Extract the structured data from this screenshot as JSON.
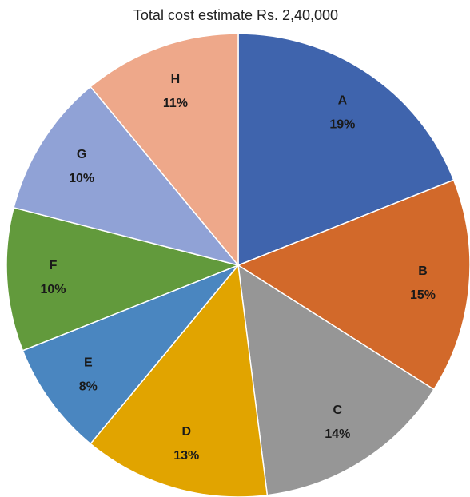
{
  "chart_data": {
    "type": "pie",
    "title": "Total cost estimate Rs. 2,40,000",
    "categories": [
      "A",
      "B",
      "C",
      "D",
      "E",
      "F",
      "G",
      "H"
    ],
    "values": [
      19,
      15,
      14,
      13,
      8,
      10,
      10,
      11
    ],
    "value_labels": [
      "19%",
      "15%",
      "14%",
      "13%",
      "8%",
      "10%",
      "10%",
      "11%"
    ],
    "colors": [
      "#3f64ad",
      "#d2692a",
      "#969696",
      "#e1a400",
      "#4a86c0",
      "#629a3c",
      "#90a2d6",
      "#eea88a"
    ]
  }
}
